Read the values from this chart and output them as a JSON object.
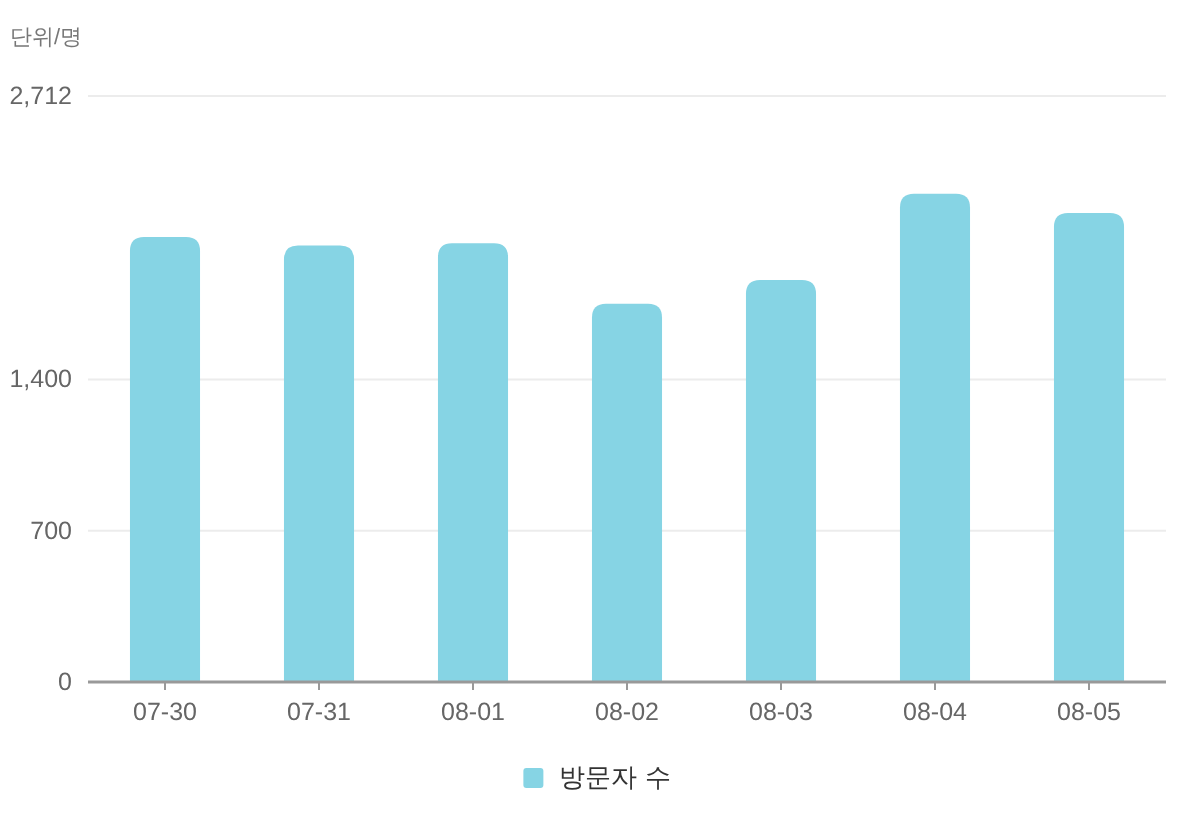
{
  "chart_data": {
    "type": "bar",
    "ylabel": "단위/명",
    "categories": [
      "07-30",
      "07-31",
      "08-01",
      "08-02",
      "08-03",
      "08-04",
      "08-05"
    ],
    "series": [
      {
        "name": "방문자 수",
        "color": "#86d4e4",
        "values": [
          2060,
          2020,
          2030,
          1750,
          1860,
          2260,
          2170
        ]
      }
    ],
    "ylim": [
      0,
      2712
    ],
    "yticks": [
      0,
      700,
      {
        "value": 1400,
        "label": "1,400"
      },
      {
        "value": 2712,
        "label": "2,712"
      }
    ],
    "grid": "y",
    "legend": "bottom"
  }
}
